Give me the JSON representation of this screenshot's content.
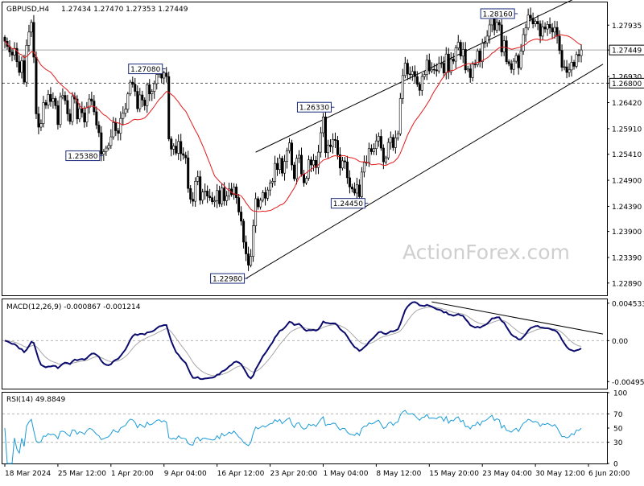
{
  "chart_data": [
    {
      "type": "candlestick",
      "symbol_label": "GBPUSD,H4",
      "ohlc_label": "1.27434 1.27470 1.27353 1.27449",
      "watermark": "ActionForex.com",
      "ylim": [
        1.2265,
        1.2838
      ],
      "y_ticks": [
        "1.27935",
        "1.27449",
        "1.26930",
        "1.26800",
        "1.26420",
        "1.25910",
        "1.25410",
        "1.24900",
        "1.24390",
        "1.23900",
        "1.23390",
        "1.22890"
      ],
      "y_tick_values": [
        1.27935,
        1.27449,
        1.2693,
        1.268,
        1.2642,
        1.2591,
        1.2541,
        1.249,
        1.2439,
        1.239,
        1.2339,
        1.2289
      ],
      "current_price": 1.27449,
      "support_level": 1.268,
      "x_labels": [
        "18 Mar 2024",
        "25 Mar 12:00",
        "1 Apr 20:00",
        "9 Apr 04:00",
        "16 Apr 12:00",
        "23 Apr 20:00",
        "1 May 04:00",
        "8 May 12:00",
        "15 May 20:00",
        "23 May 04:00",
        "30 May 12:00",
        "6 Jun 20:00"
      ],
      "x_label_index": [
        0,
        22,
        44,
        66,
        88,
        110,
        132,
        154,
        176,
        198,
        220,
        242
      ],
      "annotations": [
        {
          "text": "1.27080",
          "i": 66,
          "price": 1.2708
        },
        {
          "text": "1.25380",
          "i": 40,
          "price": 1.2538
        },
        {
          "text": "1.22980",
          "i": 100,
          "price": 1.2298
        },
        {
          "text": "1.26330",
          "i": 136,
          "price": 1.2633
        },
        {
          "text": "1.24450",
          "i": 150,
          "price": 1.2445
        },
        {
          "text": "1.28160",
          "i": 212,
          "price": 1.2816
        }
      ],
      "channel_upper": [
        [
          104,
          1.2545
        ],
        [
          248,
          1.2872
        ]
      ],
      "channel_lower": [
        [
          100,
          1.2298
        ],
        [
          248,
          1.2717
        ]
      ],
      "closes": [
        1.2762,
        1.2752,
        1.2741,
        1.2735,
        1.2748,
        1.2722,
        1.2701,
        1.2724,
        1.2682,
        1.2754,
        1.278,
        1.2799,
        1.2731,
        1.262,
        1.2594,
        1.2601,
        1.2642,
        1.2637,
        1.2658,
        1.2644,
        1.265,
        1.2636,
        1.2599,
        1.2653,
        1.2656,
        1.2646,
        1.262,
        1.2605,
        1.2654,
        1.2649,
        1.261,
        1.263,
        1.2622,
        1.2604,
        1.2632,
        1.2649,
        1.2645,
        1.2624,
        1.2598,
        1.2583,
        1.2541,
        1.2546,
        1.2553,
        1.2558,
        1.2575,
        1.2603,
        1.2587,
        1.2582,
        1.2611,
        1.2621,
        1.2629,
        1.2659,
        1.2682,
        1.2678,
        1.2664,
        1.263,
        1.2657,
        1.2647,
        1.2636,
        1.2677,
        1.2659,
        1.2664,
        1.2679,
        1.2697,
        1.2702,
        1.269,
        1.27,
        1.2693,
        1.2571,
        1.2551,
        1.2557,
        1.2543,
        1.2566,
        1.2542,
        1.2539,
        1.2534,
        1.2474,
        1.2453,
        1.2449,
        1.2488,
        1.2497,
        1.2451,
        1.2467,
        1.2469,
        1.2459,
        1.2456,
        1.2448,
        1.245,
        1.247,
        1.2444,
        1.2475,
        1.245,
        1.2459,
        1.2473,
        1.2462,
        1.2477,
        1.2456,
        1.2428,
        1.241,
        1.2369,
        1.2346,
        1.2324,
        1.2341,
        1.2401,
        1.2454,
        1.2438,
        1.2451,
        1.2466,
        1.2455,
        1.2471,
        1.2485,
        1.2488,
        1.2523,
        1.2511,
        1.2533,
        1.2504,
        1.2527,
        1.2548,
        1.2563,
        1.252,
        1.2493,
        1.2533,
        1.2539,
        1.2502,
        1.2485,
        1.2494,
        1.253,
        1.252,
        1.2529,
        1.2515,
        1.2545,
        1.2583,
        1.2614,
        1.2544,
        1.2559,
        1.2556,
        1.257,
        1.2568,
        1.254,
        1.2514,
        1.2528,
        1.2526,
        1.2495,
        1.2477,
        1.2473,
        1.2465,
        1.2481,
        1.2458,
        1.2506,
        1.2525,
        1.2525,
        1.2552,
        1.2546,
        1.2552,
        1.2567,
        1.2576,
        1.2553,
        1.2526,
        1.2534,
        1.2564,
        1.2574,
        1.2554,
        1.2573,
        1.2581,
        1.265,
        1.2695,
        1.2719,
        1.2698,
        1.2697,
        1.2703,
        1.2693,
        1.2678,
        1.2666,
        1.2693,
        1.2697,
        1.2725,
        1.2704,
        1.2707,
        1.2706,
        1.2704,
        1.2719,
        1.2719,
        1.27,
        1.2737,
        1.2702,
        1.2727,
        1.2723,
        1.2749,
        1.276,
        1.2733,
        1.2746,
        1.2706,
        1.2708,
        1.2691,
        1.2717,
        1.2716,
        1.2743,
        1.2722,
        1.2758,
        1.2759,
        1.2772,
        1.2794,
        1.2812,
        1.2784,
        1.2799,
        1.2794,
        1.2741,
        1.2763,
        1.2722,
        1.2718,
        1.2707,
        1.2723,
        1.2734,
        1.271,
        1.2743,
        1.2775,
        1.2788,
        1.2813,
        1.2807,
        1.2796,
        1.2801,
        1.2796,
        1.2772,
        1.279,
        1.2786,
        1.2795,
        1.2788,
        1.278,
        1.2789,
        1.2772,
        1.2744,
        1.2711,
        1.2712,
        1.2701,
        1.2706,
        1.2721,
        1.2713,
        1.2736,
        1.2734,
        1.2745
      ]
    },
    {
      "type": "line",
      "label": "MACD(12,26,9) -0.000867 -0.001214",
      "ylim": [
        -0.0058,
        0.005
      ],
      "y_ticks": [
        "0.004533",
        "0.00",
        "-0.00495"
      ],
      "y_tick_values": [
        0.004533,
        0.0,
        -0.00495
      ],
      "trendline": [
        [
          177,
          0.0047
        ],
        [
          248,
          0.0008
        ]
      ]
    },
    {
      "type": "line",
      "label": "RSI(14) 49.8849",
      "ylim": [
        0,
        100
      ],
      "y_ticks": [
        "100",
        "70",
        "50",
        "30",
        "0"
      ],
      "y_tick_values": [
        100,
        70,
        50,
        30,
        0
      ],
      "levels": [
        70,
        30
      ]
    }
  ],
  "colors": {
    "background": "#ffffff",
    "border": "#000000",
    "candle": "#000000",
    "ma": "#e41a1c",
    "channel": "#000000",
    "grid_level": "#b3b3b3",
    "macd": "#0b0b6e",
    "signal": "#a8a8a8",
    "rsi": "#1a9bd7",
    "watermark": "#c8c8c8"
  }
}
